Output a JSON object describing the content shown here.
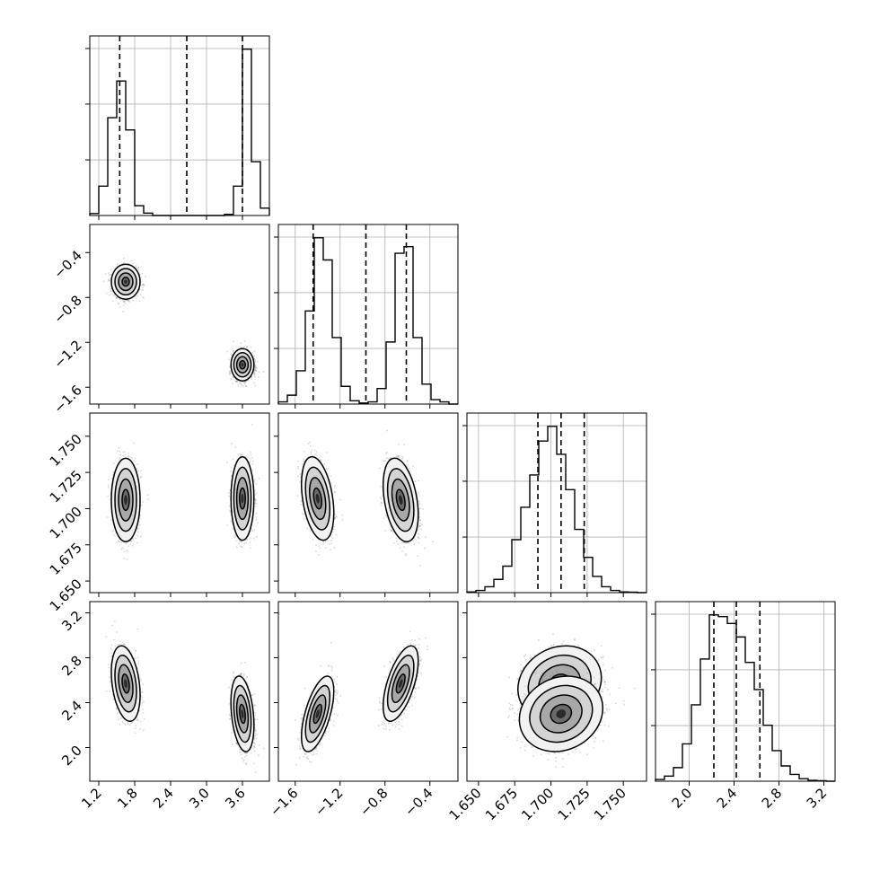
{
  "chart_data": {
    "type": "corner",
    "parameters": [
      {
        "range": [
          1.05,
          4.05
        ],
        "ticks": [
          1.2,
          1.8,
          2.4,
          3.0,
          3.6
        ],
        "tick_labels": [
          "1.2",
          "1.8",
          "2.4",
          "3.0",
          "3.6"
        ],
        "quantiles": [
          1.55,
          2.67,
          3.6
        ],
        "hist_bins": [
          1.05,
          1.2,
          1.35,
          1.5,
          1.65,
          1.8,
          1.95,
          2.1,
          2.25,
          2.4,
          2.55,
          2.7,
          2.85,
          3.0,
          3.15,
          3.3,
          3.45,
          3.6,
          3.75,
          3.9,
          4.05
        ],
        "hist_counts": [
          0.8,
          12,
          40,
          55,
          35,
          4,
          1,
          0,
          0,
          0,
          0,
          0,
          0,
          0,
          0,
          0.5,
          12,
          68,
          22,
          3
        ]
      },
      {
        "range": [
          -1.75,
          -0.15
        ],
        "ticks": [
          -1.6,
          -1.2,
          -0.8,
          -0.4
        ],
        "tick_labels": [
          "−1.6",
          "−1.2",
          "−0.8",
          "−0.4"
        ],
        "quantiles": [
          -1.44,
          -0.97,
          -0.61
        ],
        "hist_bins": [
          -1.75,
          -1.67,
          -1.59,
          -1.51,
          -1.43,
          -1.35,
          -1.27,
          -1.19,
          -1.11,
          -1.03,
          -0.95,
          -0.87,
          -0.79,
          -0.71,
          -0.63,
          -0.55,
          -0.47,
          -0.39,
          -0.31,
          -0.23,
          -0.15
        ],
        "hist_counts": [
          1,
          4,
          15,
          42,
          75,
          65,
          30,
          8,
          1.5,
          0.5,
          1,
          7,
          28,
          68,
          71,
          30,
          9,
          2,
          1,
          0
        ]
      },
      {
        "range": [
          1.642,
          1.766
        ],
        "ticks": [
          1.65,
          1.675,
          1.7,
          1.725,
          1.75
        ],
        "tick_labels": [
          "1.650",
          "1.675",
          "1.700",
          "1.725",
          "1.750"
        ],
        "quantiles": [
          1.691,
          1.707,
          1.723
        ],
        "hist_bins": [
          1.642,
          1.6482,
          1.6544,
          1.6606,
          1.6668,
          1.673,
          1.6792,
          1.6854,
          1.6916,
          1.6978,
          1.704,
          1.7102,
          1.7164,
          1.7226,
          1.7288,
          1.735,
          1.7412,
          1.7474,
          1.7536,
          1.7598,
          1.766
        ],
        "hist_counts": [
          0.5,
          1.5,
          4,
          9,
          18,
          36,
          58,
          80,
          103,
          113,
          94,
          70,
          43,
          24,
          11,
          4,
          1.5,
          0.5,
          0.3,
          0
        ]
      },
      {
        "range": [
          1.7,
          3.3
        ],
        "ticks": [
          2.0,
          2.4,
          2.8,
          3.2
        ],
        "tick_labels": [
          "2.0",
          "2.4",
          "2.8",
          "3.2"
        ],
        "quantiles": [
          2.22,
          2.42,
          2.63
        ],
        "hist_bins": [
          1.7,
          1.78,
          1.86,
          1.94,
          2.02,
          2.1,
          2.18,
          2.26,
          2.34,
          2.42,
          2.5,
          2.58,
          2.66,
          2.74,
          2.82,
          2.9,
          2.98,
          3.06,
          3.14,
          3.22,
          3.3
        ],
        "hist_counts": [
          1,
          3,
          8,
          22,
          45,
          72,
          98,
          97,
          93,
          85,
          70,
          54,
          33,
          18,
          9,
          4,
          1.5,
          0.5,
          0.3,
          0
        ]
      }
    ],
    "clusters": [
      {
        "mean": [
          1.65,
          -0.66,
          1.706,
          2.57
        ],
        "sd": [
          0.1,
          0.065,
          0.012,
          0.14
        ],
        "weight": 0.5
      },
      {
        "mean": [
          3.6,
          -1.4,
          1.707,
          2.3
        ],
        "sd": [
          0.08,
          0.06,
          0.012,
          0.14
        ],
        "weight": 0.5
      }
    ],
    "correlations": {
      "0_1": 0.0,
      "0_2": 0.0,
      "0_3": -0.3,
      "1_2": -0.35,
      "1_3": 0.6,
      "2_3": 0.15
    },
    "contour_levels_sigma": [
      0.5,
      1.0,
      1.5,
      2.0
    ],
    "scatter_points_per_cluster": 1800
  }
}
